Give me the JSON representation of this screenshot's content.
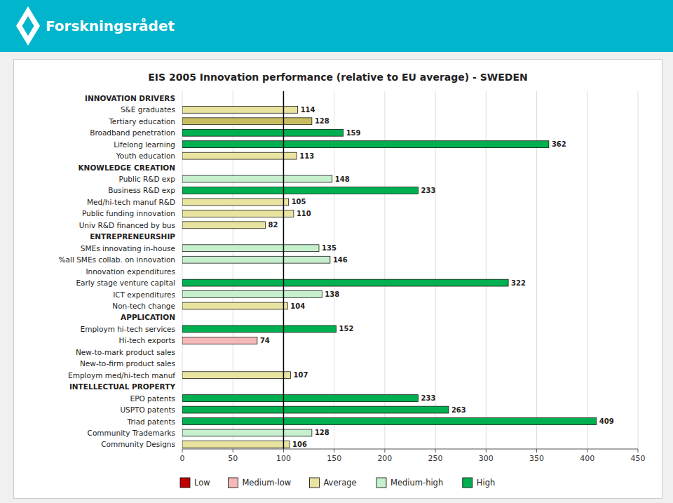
{
  "chart_data": {
    "type": "bar",
    "orientation": "horizontal",
    "title": "EIS 2005 Innovation performance (relative to EU average) - SWEDEN",
    "annotations": [
      "Forskningsrådet"
    ],
    "categories": [
      "INNOVATION DRIVERS",
      "S&E graduates",
      "Tertiary education",
      "Broadband penetration",
      "Lifelong learning",
      "Youth education",
      "KNOWLEDGE CREATION",
      "Public R&D exp",
      "Business R&D exp",
      "Med/hi-tech manuf R&D",
      "Public funding innovation",
      "Univ R&D financed by bus",
      "ENTREPRENEURSHIP",
      "SMEs innovating in-house",
      "%all SMEs collab. on innovation",
      "Innovation expenditures",
      "Early stage venture capital",
      "ICT expenditures",
      "Non-tech change",
      "APPLICATION",
      "Employm hi-tech services",
      "Hi-tech exports",
      "New-to-mark product sales",
      "New-to-firm product sales",
      "Employm med/hi-tech manuf",
      "INTELLECTUAL PROPERTY",
      "EPO patents",
      "USPTO patents",
      "Triad patents",
      "Community Trademarks",
      "Community Designs"
    ],
    "values": [
      null,
      114,
      128,
      159,
      362,
      113,
      null,
      148,
      233,
      105,
      110,
      82,
      null,
      135,
      146,
      null,
      322,
      138,
      104,
      null,
      152,
      74,
      null,
      null,
      107,
      null,
      233,
      263,
      409,
      128,
      106
    ],
    "colors": [
      null,
      "#e8e4a0",
      "#c8bc60",
      "#00b050",
      "#00b050",
      "#e8e4a0",
      null,
      "#c6efce",
      "#00b050",
      "#e8e4a0",
      "#e8e4a0",
      "#e8e4a0",
      null,
      "#c6efce",
      "#c6efce",
      null,
      "#00b050",
      "#c6efce",
      "#e8e4a0",
      null,
      "#00b050",
      "#f4b8b8",
      null,
      null,
      "#e8e4a0",
      null,
      "#00b050",
      "#00b050",
      "#00b050",
      "#c6efce",
      "#e8e4a0"
    ],
    "section_labels": [
      "INNOVATION DRIVERS",
      "KNOWLEDGE CREATION",
      "ENTREPRENEURSHIP",
      "APPLICATION",
      "INTELLECTUAL PROPERTY"
    ],
    "reference_line": 100,
    "xlim": [
      0,
      450
    ],
    "xticks": [
      0,
      50,
      100,
      150,
      200,
      250,
      300,
      350,
      400,
      450
    ],
    "grid": true,
    "data_labels": true,
    "legend": "bottom",
    "legend_entries": [
      {
        "name": "Low",
        "color": "#c00000"
      },
      {
        "name": "Medium-low",
        "color": "#f4b8b8"
      },
      {
        "name": "Average",
        "color": "#e8e4a0"
      },
      {
        "name": "Medium-high",
        "color": "#c6efce"
      },
      {
        "name": "High",
        "color": "#00b050"
      }
    ]
  }
}
